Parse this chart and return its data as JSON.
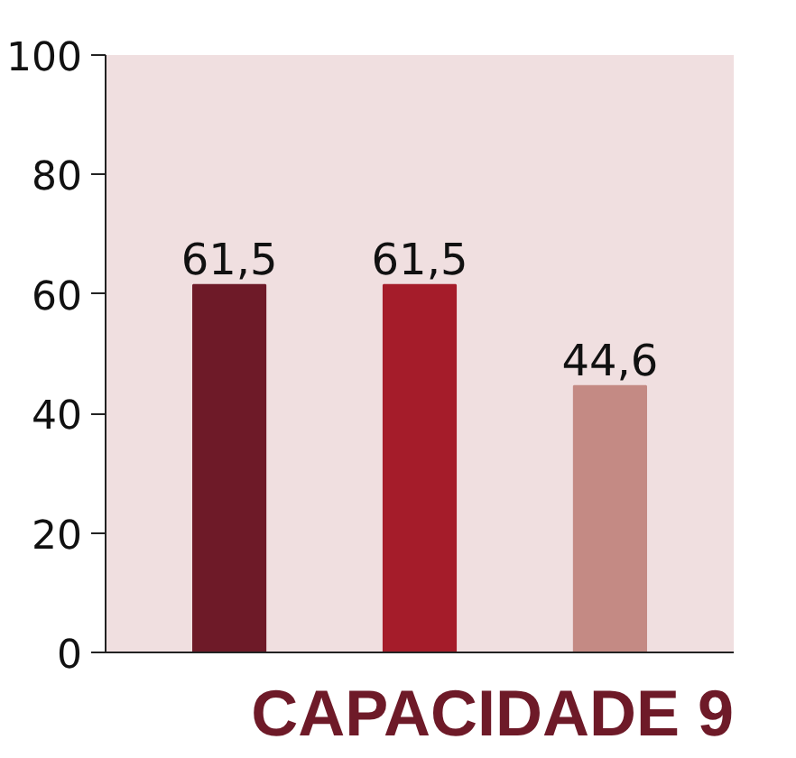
{
  "chart_data": {
    "type": "bar",
    "title": "CAPACIDADE 9",
    "categories": [
      null,
      null,
      null
    ],
    "values": [
      61.5,
      61.5,
      44.6
    ],
    "colors": [
      "#6e1a28",
      "#a51c2a",
      "#c48a84"
    ],
    "value_labels": [
      "61,5",
      "61,5",
      "44,6"
    ],
    "ylim": [
      0,
      100
    ],
    "yticks": [
      0,
      20,
      40,
      60,
      80,
      100
    ],
    "grid": false
  }
}
